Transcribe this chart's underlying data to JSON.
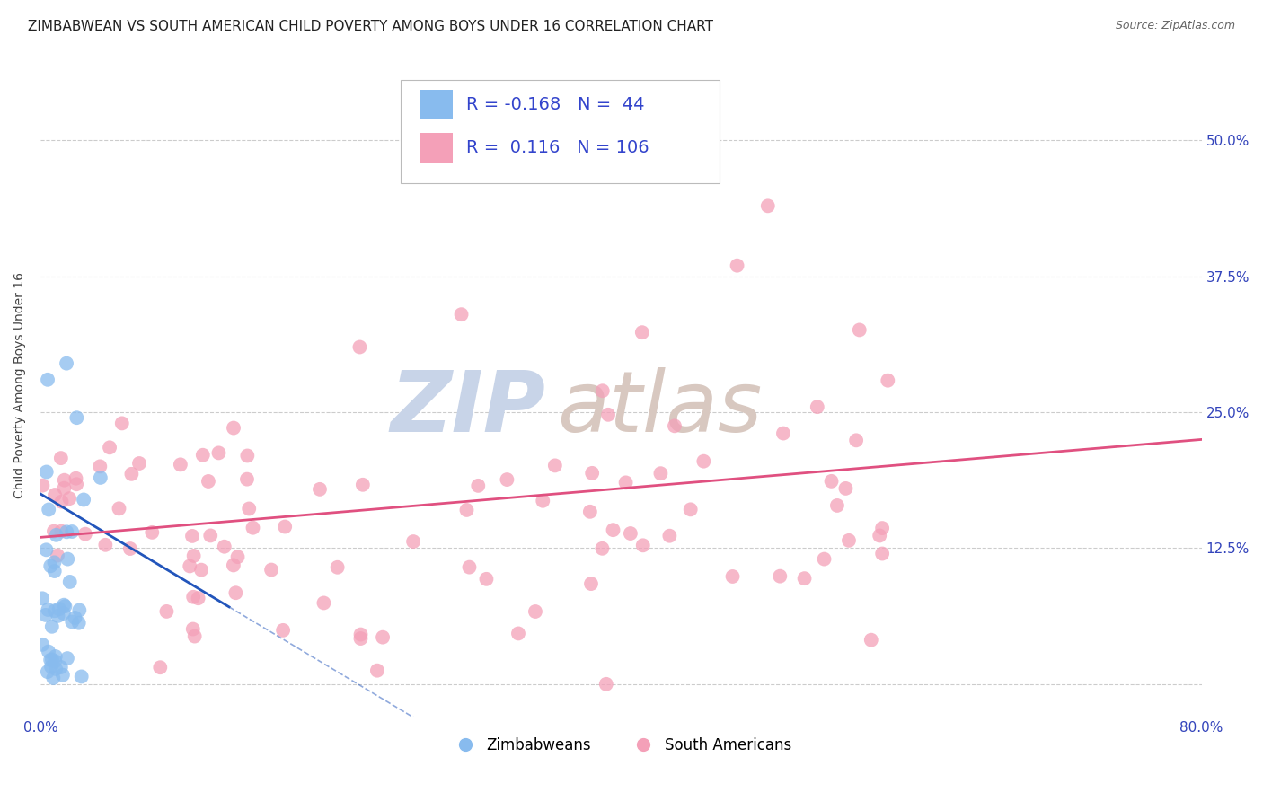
{
  "title": "ZIMBABWEAN VS SOUTH AMERICAN CHILD POVERTY AMONG BOYS UNDER 16 CORRELATION CHART",
  "source": "Source: ZipAtlas.com",
  "ylabel": "Child Poverty Among Boys Under 16",
  "xmin": 0.0,
  "xmax": 0.8,
  "ymin": -0.03,
  "ymax": 0.58,
  "yticks": [
    0.0,
    0.125,
    0.25,
    0.375,
    0.5
  ],
  "ytick_labels": [
    "",
    "12.5%",
    "25.0%",
    "37.5%",
    "50.0%"
  ],
  "xticks": [
    0.0,
    0.8
  ],
  "xtick_labels": [
    "0.0%",
    "80.0%"
  ],
  "grid_color": "#cccccc",
  "background_color": "#ffffff",
  "blue_color": "#88bbee",
  "pink_color": "#f4a0b8",
  "blue_line_color": "#2255bb",
  "pink_line_color": "#e05080",
  "watermark_zip_color": "#c8d4e8",
  "watermark_atlas_color": "#d8c8c0",
  "legend_r_blue": "-0.168",
  "legend_n_blue": "44",
  "legend_r_pink": "0.116",
  "legend_n_pink": "106",
  "blue_label": "Zimbabweans",
  "pink_label": "South Americans",
  "blue_R": -0.168,
  "blue_N": 44,
  "pink_R": 0.116,
  "pink_N": 106,
  "seed": 42,
  "title_fontsize": 11,
  "source_fontsize": 9,
  "axis_label_fontsize": 10,
  "tick_fontsize": 11,
  "legend_fontsize": 14,
  "watermark_fontsize": 68
}
